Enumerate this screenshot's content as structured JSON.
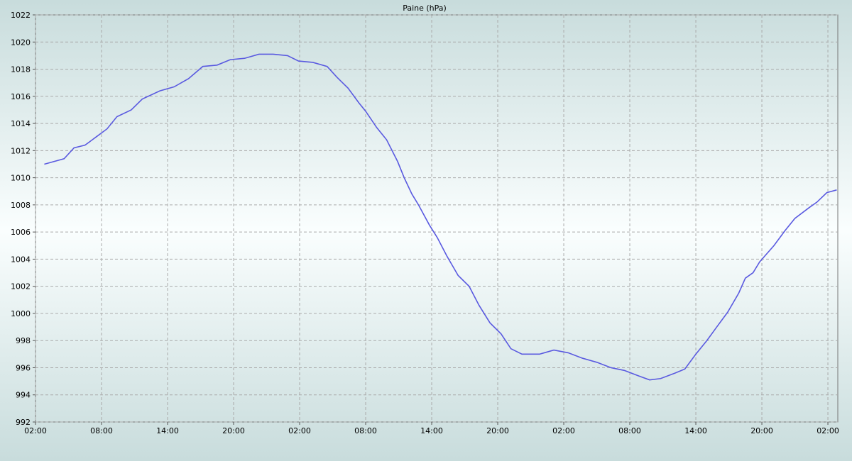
{
  "chart_data": {
    "type": "line",
    "title": "Paine (hPa)",
    "x": [
      0.8,
      2.6,
      3.5,
      4.5,
      5.5,
      6.5,
      7.4,
      8.7,
      9.7,
      11.3,
      12.6,
      13.9,
      15.2,
      16.5,
      17.7,
      19.0,
      20.3,
      21.6,
      22.9,
      23.9,
      25.2,
      26.5,
      27.4,
      28.4,
      29.4,
      30.0,
      31.0,
      31.9,
      32.9,
      33.5,
      34.2,
      34.8,
      35.8,
      36.5,
      37.4,
      38.4,
      39.4,
      40.3,
      41.3,
      42.3,
      43.2,
      44.2,
      45.8,
      47.1,
      48.4,
      49.7,
      51.0,
      52.3,
      53.5,
      54.8,
      55.8,
      56.8,
      58.1,
      59.0,
      60.0,
      61.0,
      61.9,
      62.9,
      63.9,
      64.5,
      65.2,
      65.8,
      67.1,
      68.1,
      69.0,
      70.3,
      71.0,
      71.9,
      72.8
    ],
    "series": [
      {
        "color": "#5a5ae0",
        "values": [
          1011,
          1011.4,
          1012.2,
          1012.4,
          1013,
          1013.6,
          1014.5,
          1015,
          1015.8,
          1016.4,
          1016.7,
          1017.3,
          1018.2,
          1018.3,
          1018.7,
          1018.8,
          1019.1,
          1019.1,
          1019.0,
          1018.6,
          1018.5,
          1018.2,
          1017.4,
          1016.6,
          1015.5,
          1014.9,
          1013.7,
          1012.8,
          1011.2,
          1010.0,
          1008.8,
          1008.0,
          1006.5,
          1005.6,
          1004.2,
          1002.8,
          1002.0,
          1000.6,
          999.3,
          998.5,
          997.4,
          997.0,
          997.0,
          997.3,
          997.1,
          996.7,
          996.4,
          996.0,
          995.8,
          995.4,
          995.1,
          995.2,
          995.6,
          995.9,
          997.0,
          998.0,
          999.0,
          1000.1,
          1001.5,
          1002.6,
          1003.0,
          1003.8,
          1005.0,
          1006.1,
          1007.0,
          1007.8,
          1008.2,
          1008.9,
          1009.1
        ]
      }
    ],
    "xlim": [
      0,
      72.9
    ],
    "xticks": [
      {
        "value": 0,
        "label": "02:00"
      },
      {
        "value": 6,
        "label": "08:00"
      },
      {
        "value": 12,
        "label": "14:00"
      },
      {
        "value": 18,
        "label": "20:00"
      },
      {
        "value": 24,
        "label": "02:00"
      },
      {
        "value": 30,
        "label": "08:00"
      },
      {
        "value": 36,
        "label": "14:00"
      },
      {
        "value": 42,
        "label": "20:00"
      },
      {
        "value": 48,
        "label": "02:00"
      },
      {
        "value": 54,
        "label": "08:00"
      },
      {
        "value": 60,
        "label": "14:00"
      },
      {
        "value": 66,
        "label": "20:00"
      },
      {
        "value": 72,
        "label": "02:00"
      }
    ],
    "ylim": [
      992,
      1022
    ],
    "yticks": [
      992,
      994,
      996,
      998,
      1000,
      1002,
      1004,
      1006,
      1008,
      1010,
      1012,
      1014,
      1016,
      1018,
      1020,
      1022
    ],
    "grid": true
  }
}
